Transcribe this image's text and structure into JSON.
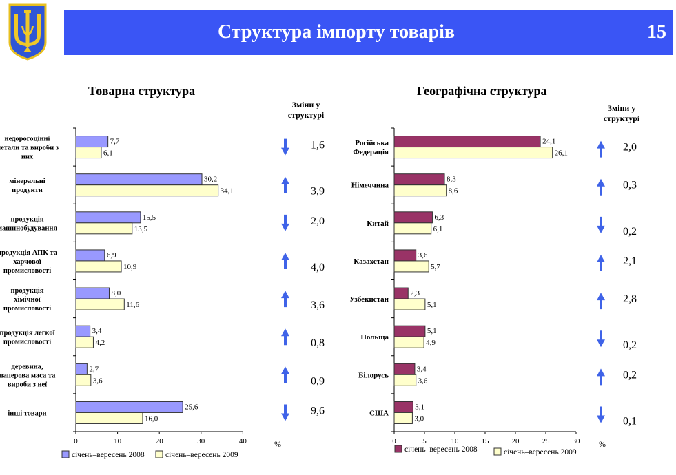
{
  "header": {
    "title": "Структура імпорту товарів",
    "page_number": "15"
  },
  "colors": {
    "banner": "#3a55f5",
    "arrow": "#3f63e8",
    "left_2008": "#9999ff",
    "left_2009": "#ffffcc",
    "right_2008": "#993366",
    "right_2009": "#ffffcc"
  },
  "chart_data": [
    {
      "type": "bar",
      "orientation": "horizontal",
      "title": "Товарна структура",
      "changes_header": "Зміни у структурі",
      "categories": [
        "недорогоцінні метали та вироби з них",
        "мінеральні продукти",
        "продукція машинобудування",
        "продукція АПК та харчової промисловості",
        "продукція хімічної промисловості",
        "продукція легкої промисловості",
        "деревина, паперова маса та вироби з неї",
        "інші товари"
      ],
      "category_lines": [
        [
          "недорогоцінні",
          "метали та вироби з",
          "них"
        ],
        [
          "мінеральні",
          "продукти"
        ],
        [
          "продукція",
          "машинобудування"
        ],
        [
          "продукція АПК та",
          "харчової",
          "промисловості"
        ],
        [
          "продукція",
          "хімічної",
          "промисловості"
        ],
        [
          "продукція легкої",
          "промисловості"
        ],
        [
          "деревина,",
          "паперова маса та",
          "вироби з неї"
        ],
        [
          "інші товари"
        ]
      ],
      "series": [
        {
          "name": "січень–вересень 2008",
          "values": [
            7.7,
            30.2,
            15.5,
            6.9,
            8.0,
            3.4,
            2.7,
            25.6
          ],
          "labels": [
            "7,7",
            "30,2",
            "15,5",
            "6,9",
            "8,0",
            "3,4",
            "2,7",
            "25,6"
          ]
        },
        {
          "name": "січень–вересень 2009",
          "values": [
            6.1,
            34.1,
            13.5,
            10.9,
            11.6,
            4.2,
            3.6,
            16.0
          ],
          "labels": [
            "6,1",
            "34,1",
            "13,5",
            "10,9",
            "11,6",
            "4,2",
            "3,6",
            "16,0"
          ]
        }
      ],
      "changes": [
        "1,6",
        "3,9",
        "2,0",
        "4,0",
        "3,6",
        "0,8",
        "0,9",
        "9,6"
      ],
      "change_direction": [
        "down",
        "up",
        "down",
        "up",
        "up",
        "up",
        "up",
        "down"
      ],
      "xlim": [
        0,
        40
      ],
      "xticks": [
        0,
        10,
        20,
        30,
        40
      ],
      "unit_label": "%"
    },
    {
      "type": "bar",
      "orientation": "horizontal",
      "title": "Географічна структура",
      "changes_header": "Зміни у структурі",
      "categories": [
        "Російська Федерація",
        "Німеччина",
        "Китай",
        "Казахстан",
        "Узбекистан",
        "Польща",
        "Білорусь",
        "США"
      ],
      "category_lines": [
        [
          "Російська",
          "Федерація"
        ],
        [
          "Німеччина"
        ],
        [
          "Китай"
        ],
        [
          "Казахстан"
        ],
        [
          "Узбекистан"
        ],
        [
          "Польща"
        ],
        [
          "Білорусь"
        ],
        [
          "США"
        ]
      ],
      "series": [
        {
          "name": "січень–вересень 2008",
          "values": [
            24.1,
            8.3,
            6.3,
            3.6,
            2.3,
            5.1,
            3.4,
            3.1
          ],
          "labels": [
            "24,1",
            "8,3",
            "6,3",
            "3,6",
            "2,3",
            "5,1",
            "3,4",
            "3,1"
          ]
        },
        {
          "name": "січень–вересень 2009",
          "values": [
            26.1,
            8.6,
            6.1,
            5.7,
            5.1,
            4.9,
            3.6,
            3.0
          ],
          "labels": [
            "26,1",
            "8,6",
            "6,1",
            "5,7",
            "5,1",
            "4,9",
            "3,6",
            "3,0"
          ]
        }
      ],
      "changes": [
        "2,0",
        "0,3",
        "0,2",
        "2,1",
        "2,8",
        "0,2",
        "0,2",
        "0,1"
      ],
      "change_direction": [
        "up",
        "up",
        "down",
        "up",
        "up",
        "down",
        "up",
        "down"
      ],
      "xlim": [
        0,
        30
      ],
      "xticks": [
        0,
        5,
        10,
        15,
        20,
        25,
        30
      ],
      "unit_label": "%"
    }
  ]
}
